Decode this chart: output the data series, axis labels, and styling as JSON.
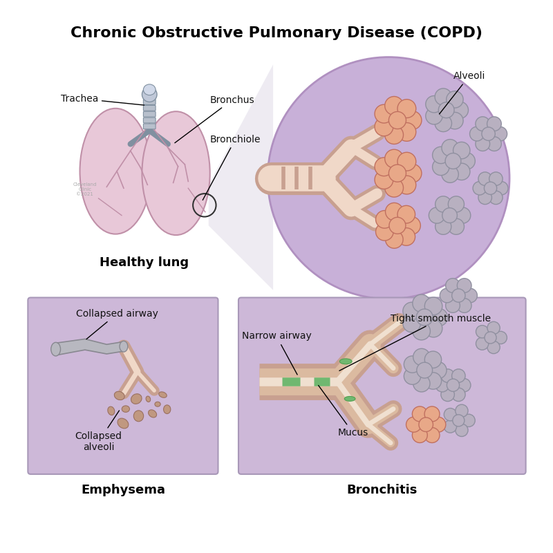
{
  "title": "Chronic Obstructive Pulmonary Disease (COPD)",
  "title_fontsize": 16,
  "title_fontweight": "bold",
  "background_color": "#ffffff",
  "labels": {
    "trachea": "Trachea",
    "bronchus": "Bronchus",
    "bronchiole": "Bronchiole",
    "alveoli": "Alveoli",
    "healthy_lung": "Healthy lung",
    "collapsed_airway": "Collapsed airway",
    "collapsed_alveoli": "Collapsed\nalveoli",
    "narrow_airway": "Narrow airway",
    "tight_smooth": "Tight smooth muscle",
    "mucus": "Mucus",
    "emphysema": "Emphysema",
    "bronchitis": "Bronchitis"
  },
  "colors": {
    "lung_fill": "#e8c8d8",
    "lung_edge": "#c090a8",
    "tube_outer": "#c8a090",
    "tube_inner": "#f0d8c8",
    "alveoli_healthy_fill": "#e8a888",
    "alveoli_healthy_dark": "#c07060",
    "alveoli_gray_fill": "#b8b0c0",
    "alveoli_gray_dark": "#9090a0",
    "circle_bg": "#c8b0d8",
    "circle_edge": "#b090c0",
    "panel_bg": "#cdb8d8",
    "panel_edge": "#a898b8",
    "trachea_fill": "#b8c0cc",
    "trachea_edge": "#8090a0",
    "mucus_fill": "#70b870",
    "mucus_edge": "#50a050",
    "text_color": "#000000",
    "ann_color": "#111111",
    "connector_fill": "#ddd8e8",
    "collapsed_fill": "#b8b8c0",
    "collapsed_edge": "#888890",
    "shriveled_fill": "#c09880",
    "shriveled_edge": "#9a7060"
  }
}
